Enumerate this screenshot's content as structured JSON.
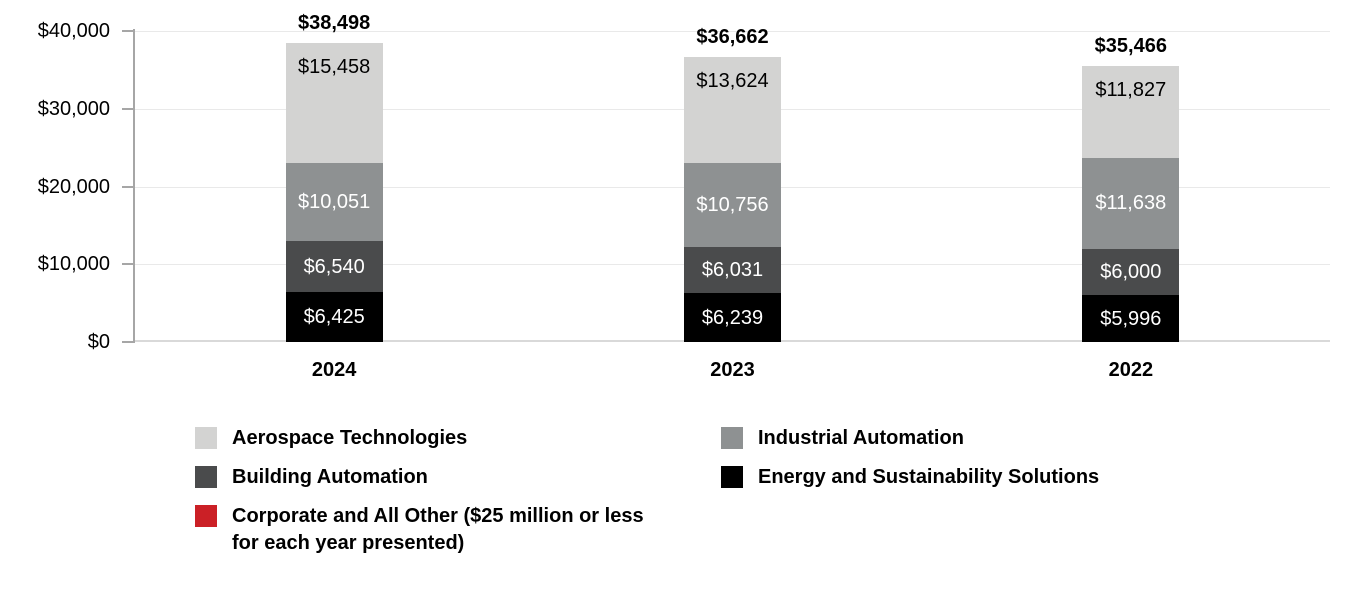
{
  "chart_data": {
    "type": "bar",
    "stacked": true,
    "title": "",
    "xlabel": "",
    "ylabel": "",
    "grid": true,
    "categories": [
      "2024",
      "2023",
      "2022"
    ],
    "series": [
      {
        "name": "Energy and Sustainability Solutions",
        "color": "#000000",
        "label_color": "#ffffff",
        "values": [
          6425,
          6239,
          5996
        ],
        "labels": [
          "$6,425",
          "$6,239",
          "$5,996"
        ]
      },
      {
        "name": "Building Automation",
        "color": "#4a4b4c",
        "label_color": "#ffffff",
        "values": [
          6540,
          6031,
          6000
        ],
        "labels": [
          "$6,540",
          "$6,031",
          "$6,000"
        ]
      },
      {
        "name": "Industrial Automation",
        "color": "#8e9192",
        "label_color": "#ffffff",
        "values": [
          10051,
          10756,
          11638
        ],
        "labels": [
          "$10,051",
          "$10,756",
          "$11,638"
        ]
      },
      {
        "name": "Aerospace Technologies",
        "color": "#d3d3d2",
        "label_color": "#000000",
        "values": [
          15458,
          13624,
          11827
        ],
        "labels": [
          "$15,458",
          "$13,624",
          "$11,827"
        ]
      }
    ],
    "totals": {
      "values": [
        38498,
        36662,
        35466
      ],
      "labels": [
        "$38,498",
        "$36,662",
        "$35,466"
      ]
    },
    "y_axis": {
      "ylim": [
        0,
        40000
      ],
      "ticks": [
        {
          "value": 40000,
          "label": "$40,000"
        },
        {
          "value": 30000,
          "label": "$30,000"
        },
        {
          "value": 20000,
          "label": "$20,000"
        },
        {
          "value": 10000,
          "label": "$10,000"
        },
        {
          "value": 0,
          "label": "$0"
        }
      ]
    },
    "legend": {
      "position": "bottom",
      "items": [
        {
          "label": "Aerospace Technologies",
          "color": "#d3d3d2"
        },
        {
          "label": "Industrial Automation",
          "color": "#8e9192"
        },
        {
          "label": "Building Automation",
          "color": "#4a4b4c"
        },
        {
          "label": "Energy and Sustainability Solutions",
          "color": "#000000"
        },
        {
          "label": "Corporate and All Other ($25 million or less for each year presented)",
          "color": "#cb2026"
        }
      ]
    }
  }
}
